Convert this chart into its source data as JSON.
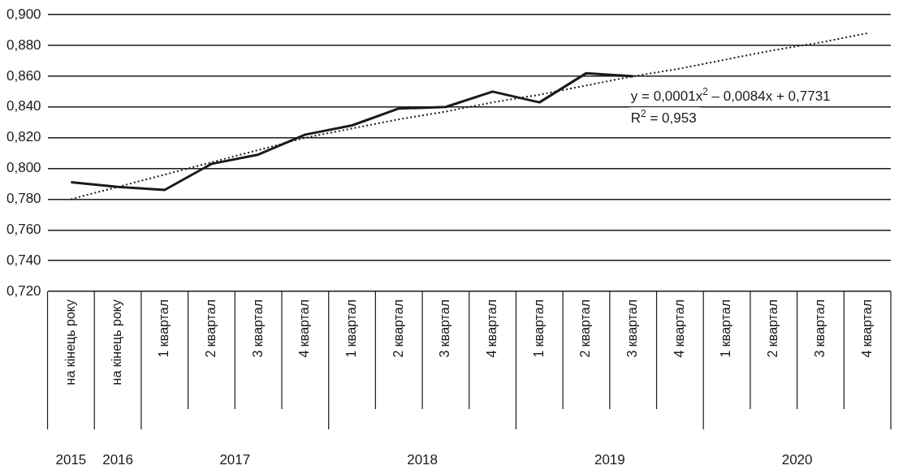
{
  "chart_data": {
    "type": "line",
    "categories": [
      "на кінець року",
      "на кінець року",
      "1 квартал",
      "2 квартал",
      "3 квартал",
      "4 квартал",
      "1 квартал",
      "2 квартал",
      "3 квартал",
      "4 квартал",
      "1 квартал",
      "2 квартал",
      "3 квартал",
      "4 квартал",
      "1 квартал",
      "2 квартал",
      "3 квартал",
      "4 квартал"
    ],
    "series": [
      {
        "color": "#1a1a1a",
        "values": [
          0.791,
          0.788,
          0.786,
          0.803,
          0.809,
          0.822,
          0.828,
          0.839,
          0.84,
          0.85,
          0.843,
          0.862,
          0.86,
          null,
          null,
          null,
          null,
          null
        ]
      },
      {
        "type": "line",
        "line_style": "dotted",
        "color": "#1a1a1a",
        "values": [
          0.78,
          0.788,
          0.796,
          0.804,
          0.812,
          0.82,
          0.826,
          0.832,
          0.837,
          0.843,
          0.848,
          0.854,
          0.86,
          0.865,
          0.871,
          0.877,
          0.882,
          0.888
        ]
      }
    ],
    "ylim": [
      0.72,
      0.9
    ],
    "yticks": [
      {
        "value": 0.72,
        "label": "0,720"
      },
      {
        "value": 0.74,
        "label": "0,740"
      },
      {
        "value": 0.76,
        "label": "0,760"
      },
      {
        "value": 0.78,
        "label": "0,780"
      },
      {
        "value": 0.8,
        "label": "0,800"
      },
      {
        "value": 0.82,
        "label": "0,820"
      },
      {
        "value": 0.84,
        "label": "0,840"
      },
      {
        "value": 0.86,
        "label": "0,860"
      },
      {
        "value": 0.88,
        "label": "0,880"
      },
      {
        "value": 0.9,
        "label": "0,900"
      }
    ],
    "grid": "y",
    "legend": false,
    "marker": "none",
    "line_style": "solid",
    "annotations": [
      "y = 0,0001x$^{2}$ – 0,0084x + 0,7731",
      "R$^{2}$ = 0,953",
      "2015",
      "2016",
      "2017",
      "2018",
      "2019",
      "2020"
    ]
  }
}
